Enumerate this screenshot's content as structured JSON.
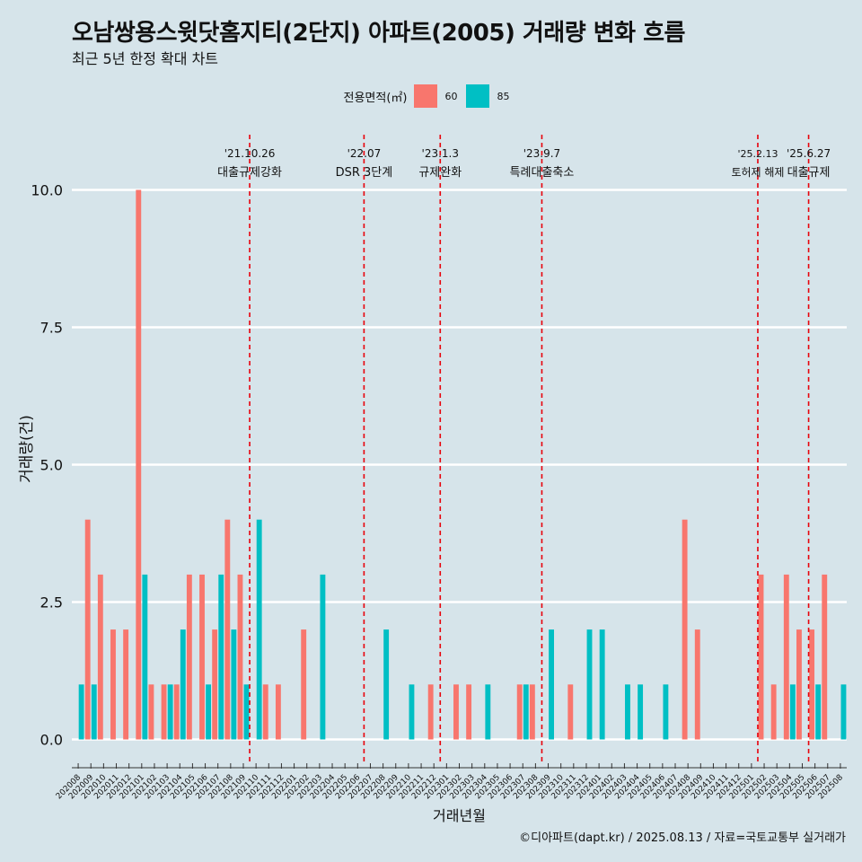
{
  "title": "오남쌍용스윗닷홈지티(2단지) 아파트(2005) 거래량 변화 흐름",
  "subtitle": "최근 5년 한정 확대 차트",
  "caption": "©디아파트(dapt.kr) / 2025.08.13 / 자료=국토교통부 실거래가",
  "legend": {
    "title": "전용면적(㎡)",
    "items": [
      {
        "label": "60",
        "color": "#f8766d"
      },
      {
        "label": "85",
        "color": "#00bfc4"
      }
    ]
  },
  "chart_data": {
    "type": "bar",
    "xlabel": "거래년월",
    "ylabel": "거래량(건)",
    "ylim": [
      -0.45,
      11.2
    ],
    "yticks": [
      "0.0",
      "2.5",
      "5.0",
      "7.5",
      "10.0"
    ],
    "categories": [
      "202008",
      "202009",
      "202010",
      "202011",
      "202012",
      "202101",
      "202102",
      "202103",
      "202104",
      "202105",
      "202106",
      "202107",
      "202108",
      "202109",
      "202110",
      "202111",
      "202112",
      "202201",
      "202202",
      "202203",
      "202204",
      "202205",
      "202206",
      "202207",
      "202208",
      "202209",
      "202210",
      "202211",
      "202212",
      "202301",
      "202302",
      "202303",
      "202304",
      "202305",
      "202306",
      "202307",
      "202308",
      "202309",
      "202310",
      "202311",
      "202312",
      "202401",
      "202402",
      "202403",
      "202404",
      "202405",
      "202406",
      "202407",
      "202408",
      "202409",
      "202410",
      "202411",
      "202412",
      "202501",
      "202502",
      "202503",
      "202504",
      "202505",
      "202506",
      "202507",
      "202508"
    ],
    "series": [
      {
        "name": "60",
        "color": "#f8766d",
        "values": [
          0,
          4,
          3,
          2,
          2,
          10,
          1,
          1,
          1,
          3,
          3,
          2,
          4,
          3,
          0,
          1,
          1,
          0,
          2,
          0,
          0,
          0,
          0,
          0,
          0,
          0,
          0,
          0,
          1,
          0,
          1,
          1,
          0,
          0,
          0,
          1,
          1,
          0,
          0,
          1,
          0,
          0,
          0,
          0,
          0,
          0,
          0,
          0,
          4,
          2,
          0,
          0,
          0,
          0,
          3,
          1,
          3,
          2,
          2,
          3,
          0
        ]
      },
      {
        "name": "85",
        "color": "#00bfc4",
        "values": [
          1,
          1,
          0,
          0,
          0,
          3,
          0,
          1,
          2,
          0,
          1,
          3,
          2,
          1,
          4,
          0,
          0,
          0,
          0,
          3,
          0,
          0,
          0,
          0,
          2,
          0,
          1,
          0,
          0,
          0,
          0,
          0,
          1,
          0,
          0,
          1,
          0,
          2,
          0,
          0,
          2,
          2,
          0,
          1,
          1,
          0,
          1,
          0,
          0,
          0,
          0,
          0,
          0,
          0,
          0,
          0,
          1,
          0,
          1,
          0,
          1
        ]
      }
    ],
    "events": [
      {
        "date_line1": "'21.10.26",
        "date_line2": "대출규제강화",
        "at": 14.0
      },
      {
        "date_line1": "'22.07",
        "date_line2": "DSR 3단계",
        "at": 23.0
      },
      {
        "date_line1": "'23.1.3",
        "date_line2": "규제완화",
        "at": 29.0
      },
      {
        "date_line1": "'23.9.7",
        "date_line2": "특례대출축소",
        "at": 37.0
      },
      {
        "date_line1": "'25.2.13",
        "date_line2": "토허제 해제",
        "at": 54.0
      },
      {
        "date_line1": "'25.6.27",
        "date_line2": "대출규제",
        "at": 58.0
      }
    ]
  }
}
